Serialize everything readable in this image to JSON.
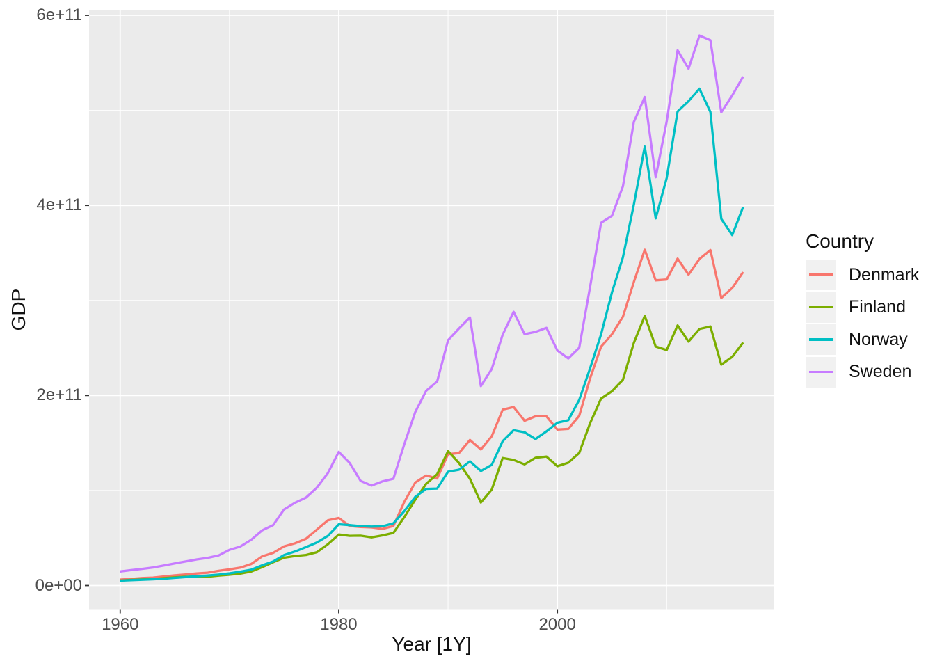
{
  "colors": {
    "panel_background": "#EBEBEB",
    "gridline": "#FFFFFF",
    "legend_key_background": "#F1F1F1",
    "tick_text": "#4D4D4D",
    "axis_title_text": "#111111",
    "tick_mark": "#333333"
  },
  "legend": {
    "title": "Country",
    "items": [
      {
        "label": "Denmark",
        "color": "#F8766D"
      },
      {
        "label": "Finland",
        "color": "#7CAE00"
      },
      {
        "label": "Norway",
        "color": "#00BFC4"
      },
      {
        "label": "Sweden",
        "color": "#C77CFF"
      }
    ]
  },
  "chart_data": {
    "type": "line",
    "title": "",
    "xlabel": "Year [1Y]",
    "ylabel": "GDP",
    "legend_position": "right",
    "grid": "white major and minor gridlines on grey panel",
    "values_unit": "USD, billions (multiply by 1e9)",
    "x_domain": [
      1957.15,
      2019.85
    ],
    "y_domain_e9": [
      -25.6,
      606
    ],
    "x_tick_years": [
      1960,
      1980,
      2000
    ],
    "x_tick_labels": [
      "1960",
      "1980",
      "2000"
    ],
    "x_minor_years": [
      1970,
      1990,
      2010
    ],
    "y_tick_values_e9": [
      0,
      200,
      400,
      600
    ],
    "y_tick_labels": [
      "0e+00",
      "2e+11",
      "4e+11",
      "6e+11"
    ],
    "y_minor_e9": [
      100,
      300,
      500
    ],
    "years": [
      1960,
      1961,
      1962,
      1963,
      1964,
      1965,
      1966,
      1967,
      1968,
      1969,
      1970,
      1971,
      1972,
      1973,
      1974,
      1975,
      1976,
      1977,
      1978,
      1979,
      1980,
      1981,
      1982,
      1983,
      1984,
      1985,
      1986,
      1987,
      1988,
      1989,
      1990,
      1991,
      1992,
      1993,
      1994,
      1995,
      1996,
      1997,
      1998,
      1999,
      2000,
      2001,
      2002,
      2003,
      2004,
      2005,
      2006,
      2007,
      2008,
      2009,
      2010,
      2011,
      2012,
      2013,
      2014,
      2015,
      2016,
      2017
    ],
    "series": [
      {
        "name": "Denmark",
        "color": "#F8766D",
        "values_e9": [
          6.25,
          6.93,
          7.81,
          8.33,
          9.51,
          10.68,
          11.56,
          12.65,
          13.47,
          15.46,
          17.08,
          18.84,
          22.71,
          30.73,
          34.35,
          41.24,
          44.43,
          49.22,
          58.86,
          68.61,
          71.13,
          62.61,
          61.62,
          61.13,
          59.59,
          62.69,
          88.0,
          108.36,
          115.82,
          112.65,
          138.25,
          139.4,
          153.16,
          143.21,
          157.15,
          185.09,
          187.81,
          173.36,
          178.1,
          177.96,
          164.16,
          164.79,
          178.64,
          218.08,
          251.37,
          264.47,
          282.88,
          319.42,
          353.36,
          321.24,
          321.99,
          344.0,
          327.15,
          343.58,
          352.99,
          302.67,
          313.12,
          329.87
        ]
      },
      {
        "name": "Finland",
        "color": "#7CAE00",
        "values_e9": [
          5.22,
          5.92,
          6.34,
          6.89,
          7.77,
          8.59,
          9.22,
          9.51,
          9.32,
          10.47,
          11.36,
          12.54,
          14.71,
          19.3,
          24.51,
          29.28,
          31.06,
          32.17,
          35.06,
          43.39,
          53.66,
          52.28,
          52.43,
          50.69,
          52.75,
          55.33,
          72.06,
          90.31,
          107.05,
          117.17,
          141.52,
          128.97,
          112.41,
          87.38,
          101.05,
          134.2,
          132.16,
          127.5,
          134.43,
          135.77,
          125.54,
          129.28,
          139.57,
          171.07,
          196.77,
          204.44,
          216.55,
          255.38,
          283.74,
          251.5,
          247.8,
          273.67,
          256.71,
          269.98,
          272.61,
          232.48,
          240.61,
          255.65
        ]
      },
      {
        "name": "Norway",
        "color": "#00BFC4",
        "values_e9": [
          5.16,
          5.63,
          6.07,
          6.51,
          7.16,
          8.06,
          8.85,
          9.77,
          10.44,
          11.39,
          12.81,
          14.55,
          16.71,
          21.29,
          25.34,
          32.07,
          35.81,
          40.42,
          45.25,
          52.24,
          64.42,
          63.52,
          62.55,
          61.99,
          62.38,
          65.43,
          78.33,
          93.28,
          101.71,
          102.05,
          119.79,
          121.87,
          130.69,
          120.5,
          127.13,
          152.03,
          163.48,
          161.33,
          154.15,
          162.28,
          171.31,
          174.01,
          195.39,
          228.8,
          264.33,
          308.72,
          345.42,
          400.88,
          461.95,
          386.38,
          428.76,
          498.83,
          509.71,
          522.75,
          498.4,
          385.8,
          368.83,
          398.39
        ]
      },
      {
        "name": "Sweden",
        "color": "#C77CFF",
        "values_e9": [
          14.82,
          16.15,
          17.51,
          18.95,
          21.09,
          23.26,
          25.3,
          27.46,
          29.14,
          31.65,
          37.56,
          41.09,
          48.27,
          58.11,
          63.64,
          80.11,
          87.12,
          92.58,
          102.98,
          118.34,
          140.63,
          128.97,
          110.11,
          105.23,
          109.62,
          112.36,
          148.71,
          182.49,
          204.97,
          214.66,
          258.16,
          270.52,
          282.13,
          209.9,
          227.91,
          264.05,
          288.04,
          264.55,
          266.84,
          271.12,
          247.26,
          239.0,
          250.22,
          314.71,
          381.7,
          389.04,
          420.03,
          487.82,
          513.97,
          429.66,
          488.38,
          563.11,
          543.88,
          578.74,
          573.82,
          497.92,
          515.65,
          535.61
        ]
      }
    ]
  }
}
